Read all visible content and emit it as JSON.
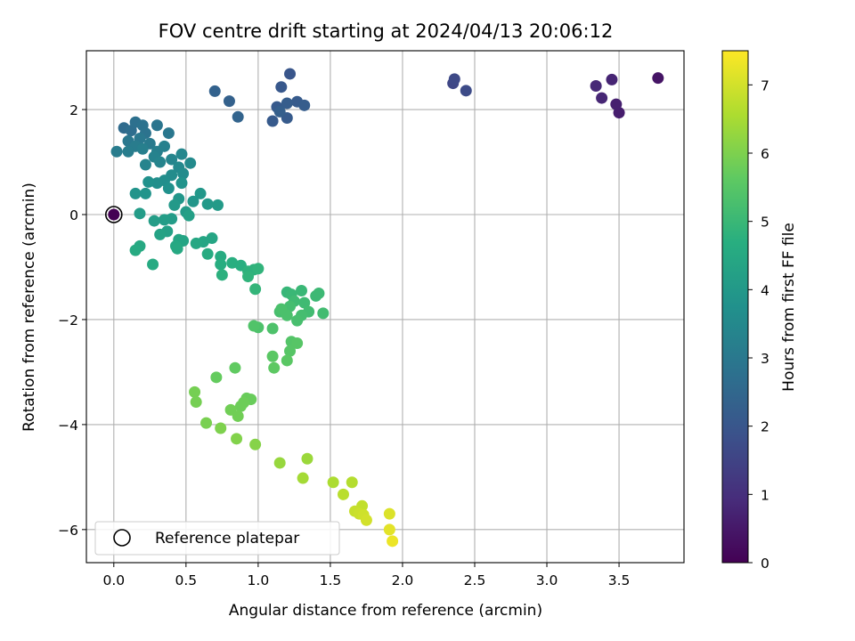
{
  "chart_data": {
    "type": "scatter",
    "title": "FOV centre drift starting at 2024/04/13 20:06:12",
    "xlabel": "Angular distance from reference (arcmin)",
    "ylabel": "Rotation from reference (arcmin)",
    "xlim": [
      -0.19,
      3.95
    ],
    "ylim": [
      -6.63,
      3.12
    ],
    "xticks": [
      0.0,
      0.5,
      1.0,
      1.5,
      2.0,
      2.5,
      3.0,
      3.5
    ],
    "xtick_labels": [
      "0.0",
      "0.5",
      "1.0",
      "1.5",
      "2.0",
      "2.5",
      "3.0",
      "3.5"
    ],
    "yticks": [
      -6,
      -4,
      -2,
      0,
      2
    ],
    "ytick_labels": [
      "−6",
      "−4",
      "−2",
      "0",
      "2"
    ],
    "grid": true,
    "legend": {
      "placement": "lower-left",
      "entries": [
        "Reference platepar"
      ]
    },
    "colorbar": {
      "label": "Hours from first FF file",
      "colormap": "viridis",
      "range": [
        0,
        7.5
      ],
      "ticks": [
        0,
        1,
        2,
        3,
        4,
        5,
        6,
        7
      ],
      "tick_labels": [
        "0",
        "1",
        "2",
        "3",
        "4",
        "5",
        "6",
        "7"
      ]
    },
    "reference_point": {
      "x": 0.0,
      "y": 0.0
    },
    "points": [
      [
        0.0,
        0.0,
        0.0
      ],
      [
        3.77,
        2.6,
        0.4
      ],
      [
        3.5,
        1.94,
        0.6
      ],
      [
        3.48,
        2.1,
        0.65
      ],
      [
        3.45,
        2.57,
        0.75
      ],
      [
        3.38,
        2.22,
        0.8
      ],
      [
        3.34,
        2.45,
        0.85
      ],
      [
        2.35,
        2.5,
        1.6
      ],
      [
        2.36,
        2.58,
        1.65
      ],
      [
        2.44,
        2.36,
        1.7
      ],
      [
        1.22,
        2.68,
        2.0
      ],
      [
        1.16,
        2.43,
        2.05
      ],
      [
        1.1,
        1.78,
        2.1
      ],
      [
        1.13,
        2.05,
        2.1
      ],
      [
        1.2,
        1.84,
        2.15
      ],
      [
        1.27,
        2.15,
        2.15
      ],
      [
        1.32,
        2.08,
        2.2
      ],
      [
        1.2,
        2.12,
        2.2
      ],
      [
        1.15,
        1.96,
        2.25
      ],
      [
        0.8,
        2.16,
        2.3
      ],
      [
        0.7,
        2.35,
        2.35
      ],
      [
        0.86,
        1.86,
        2.4
      ],
      [
        0.07,
        1.65,
        2.6
      ],
      [
        0.12,
        1.6,
        2.7
      ],
      [
        0.15,
        1.76,
        2.75
      ],
      [
        0.2,
        1.7,
        2.8
      ],
      [
        0.22,
        1.55,
        2.85
      ],
      [
        0.3,
        1.7,
        2.9
      ],
      [
        0.38,
        1.55,
        2.95
      ],
      [
        0.1,
        1.4,
        3.0
      ],
      [
        0.18,
        1.45,
        3.0
      ],
      [
        0.25,
        1.35,
        3.05
      ],
      [
        0.15,
        1.3,
        3.1
      ],
      [
        0.02,
        1.2,
        3.1
      ],
      [
        0.1,
        1.2,
        3.15
      ],
      [
        0.2,
        1.25,
        3.2
      ],
      [
        0.3,
        1.2,
        3.2
      ],
      [
        0.35,
        1.3,
        3.25
      ],
      [
        0.28,
        1.1,
        3.3
      ],
      [
        0.22,
        0.95,
        3.35
      ],
      [
        0.32,
        1.0,
        3.35
      ],
      [
        0.4,
        1.05,
        3.4
      ],
      [
        0.47,
        1.15,
        3.45
      ],
      [
        0.45,
        0.9,
        3.5
      ],
      [
        0.53,
        0.98,
        3.55
      ],
      [
        0.48,
        0.78,
        3.6
      ],
      [
        0.4,
        0.75,
        3.6
      ],
      [
        0.35,
        0.65,
        3.65
      ],
      [
        0.3,
        0.6,
        3.7
      ],
      [
        0.38,
        0.5,
        3.75
      ],
      [
        0.24,
        0.62,
        3.75
      ],
      [
        0.47,
        0.6,
        3.8
      ],
      [
        0.15,
        0.4,
        3.85
      ],
      [
        0.22,
        0.4,
        3.85
      ],
      [
        0.45,
        0.3,
        3.9
      ],
      [
        0.55,
        0.25,
        3.9
      ],
      [
        0.6,
        0.4,
        3.95
      ],
      [
        0.65,
        0.2,
        4.0
      ],
      [
        0.42,
        0.18,
        4.0
      ],
      [
        0.72,
        0.18,
        4.05
      ],
      [
        0.5,
        0.05,
        4.05
      ],
      [
        0.18,
        0.02,
        4.1
      ],
      [
        0.4,
        -0.08,
        4.1
      ],
      [
        0.35,
        -0.1,
        4.15
      ],
      [
        0.28,
        -0.12,
        4.15
      ],
      [
        0.52,
        -0.02,
        4.2
      ],
      [
        0.37,
        -0.32,
        4.25
      ],
      [
        0.32,
        -0.38,
        4.3
      ],
      [
        0.45,
        -0.48,
        4.35
      ],
      [
        0.48,
        -0.5,
        4.35
      ],
      [
        0.62,
        -0.52,
        4.4
      ],
      [
        0.68,
        -0.45,
        4.4
      ],
      [
        0.57,
        -0.55,
        4.45
      ],
      [
        0.43,
        -0.6,
        4.45
      ],
      [
        0.44,
        -0.65,
        4.5
      ],
      [
        0.18,
        -0.6,
        4.5
      ],
      [
        0.15,
        -0.68,
        4.55
      ],
      [
        0.27,
        -0.95,
        4.55
      ],
      [
        0.65,
        -0.75,
        4.6
      ],
      [
        0.74,
        -0.8,
        4.6
      ],
      [
        0.74,
        -0.95,
        4.65
      ],
      [
        0.82,
        -0.92,
        4.7
      ],
      [
        0.88,
        -0.97,
        4.7
      ],
      [
        0.75,
        -1.15,
        4.75
      ],
      [
        0.93,
        -1.08,
        4.8
      ],
      [
        0.97,
        -1.05,
        4.8
      ],
      [
        1.0,
        -1.03,
        4.85
      ],
      [
        0.93,
        -1.18,
        4.85
      ],
      [
        0.98,
        -1.42,
        4.9
      ],
      [
        1.2,
        -1.48,
        4.95
      ],
      [
        1.23,
        -1.52,
        5.0
      ],
      [
        1.3,
        -1.45,
        5.0
      ],
      [
        1.4,
        -1.55,
        5.05
      ],
      [
        1.42,
        -1.5,
        5.05
      ],
      [
        1.25,
        -1.65,
        5.1
      ],
      [
        1.32,
        -1.68,
        5.1
      ],
      [
        1.35,
        -1.85,
        5.15
      ],
      [
        1.45,
        -1.88,
        5.15
      ],
      [
        1.3,
        -1.92,
        5.2
      ],
      [
        1.22,
        -1.75,
        5.2
      ],
      [
        1.27,
        -2.02,
        5.25
      ],
      [
        1.15,
        -1.85,
        5.25
      ],
      [
        1.2,
        -1.92,
        5.3
      ],
      [
        1.16,
        -1.8,
        5.3
      ],
      [
        1.0,
        -2.15,
        5.35
      ],
      [
        1.1,
        -2.17,
        5.35
      ],
      [
        0.97,
        -2.12,
        5.4
      ],
      [
        1.23,
        -2.42,
        5.45
      ],
      [
        1.27,
        -2.45,
        5.5
      ],
      [
        1.22,
        -2.6,
        5.5
      ],
      [
        1.2,
        -2.78,
        5.55
      ],
      [
        1.1,
        -2.7,
        5.55
      ],
      [
        1.11,
        -2.92,
        5.6
      ],
      [
        0.84,
        -2.92,
        5.65
      ],
      [
        0.71,
        -3.1,
        5.7
      ],
      [
        0.92,
        -3.5,
        5.75
      ],
      [
        0.95,
        -3.52,
        5.75
      ],
      [
        0.9,
        -3.58,
        5.8
      ],
      [
        0.88,
        -3.65,
        5.8
      ],
      [
        0.81,
        -3.72,
        5.85
      ],
      [
        0.86,
        -3.84,
        5.85
      ],
      [
        0.56,
        -3.38,
        5.9
      ],
      [
        0.57,
        -3.57,
        5.9
      ],
      [
        0.64,
        -3.97,
        5.95
      ],
      [
        0.74,
        -4.07,
        6.0
      ],
      [
        0.85,
        -4.27,
        6.05
      ],
      [
        0.98,
        -4.38,
        6.1
      ],
      [
        1.15,
        -4.73,
        6.3
      ],
      [
        1.34,
        -4.65,
        6.35
      ],
      [
        1.31,
        -5.02,
        6.45
      ],
      [
        1.52,
        -5.1,
        6.55
      ],
      [
        1.65,
        -5.1,
        6.65
      ],
      [
        1.59,
        -5.33,
        6.7
      ],
      [
        1.72,
        -5.55,
        6.8
      ],
      [
        1.67,
        -5.65,
        6.85
      ],
      [
        1.7,
        -5.7,
        6.9
      ],
      [
        1.73,
        -5.72,
        6.95
      ],
      [
        1.75,
        -5.82,
        7.0
      ],
      [
        1.91,
        -5.7,
        7.1
      ],
      [
        1.91,
        -6.0,
        7.2
      ],
      [
        1.93,
        -6.22,
        7.3
      ]
    ]
  }
}
